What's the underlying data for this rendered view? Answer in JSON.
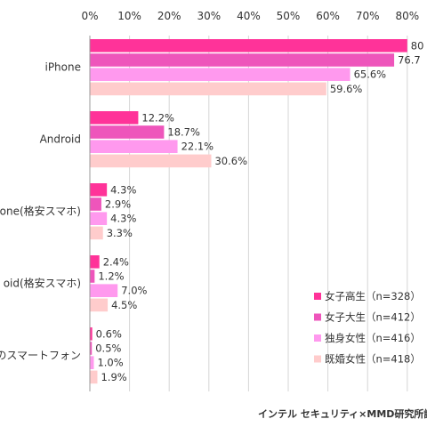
{
  "chart_data": {
    "type": "bar",
    "orientation": "horizontal",
    "categories": [
      "iPhone",
      "Android",
      "one(格安スマホ)",
      "oid(格安スマホ)",
      "の他のスマートフォン"
    ],
    "series": [
      {
        "name": "女子高生（n=328）",
        "color": "#ff3399",
        "values": [
          80.0,
          12.2,
          4.3,
          2.4,
          0.6
        ],
        "labels": [
          "80",
          "12.2%",
          "4.3%",
          "2.4%",
          "0.6%"
        ]
      },
      {
        "name": "女子大生（n=412）",
        "color": "#ee55bb",
        "values": [
          76.7,
          18.7,
          2.9,
          1.2,
          0.5
        ],
        "labels": [
          "76.7",
          "18.7%",
          "2.9%",
          "1.2%",
          "0.5%"
        ]
      },
      {
        "name": "独身女性（n=416）",
        "color": "#ff99ee",
        "values": [
          65.6,
          22.1,
          4.3,
          7.0,
          1.0
        ],
        "labels": [
          "65.6%",
          "22.1%",
          "4.3%",
          "7.0%",
          "1.0%"
        ]
      },
      {
        "name": "既婚女性（n=418）",
        "color": "#ffcccc",
        "values": [
          59.6,
          30.6,
          3.3,
          4.5,
          1.9
        ],
        "labels": [
          "59.6%",
          "30.6%",
          "3.3%",
          "4.5%",
          "1.9%"
        ]
      }
    ],
    "x_ticks": [
      "0%",
      "10%",
      "20%",
      "30%",
      "40%",
      "50%",
      "60%",
      "70%",
      "80%"
    ],
    "xlim": [
      0,
      80
    ],
    "grid": true,
    "legend_position": "bottom-right",
    "source": "インテル セキュリティ×MMD研究所調"
  }
}
